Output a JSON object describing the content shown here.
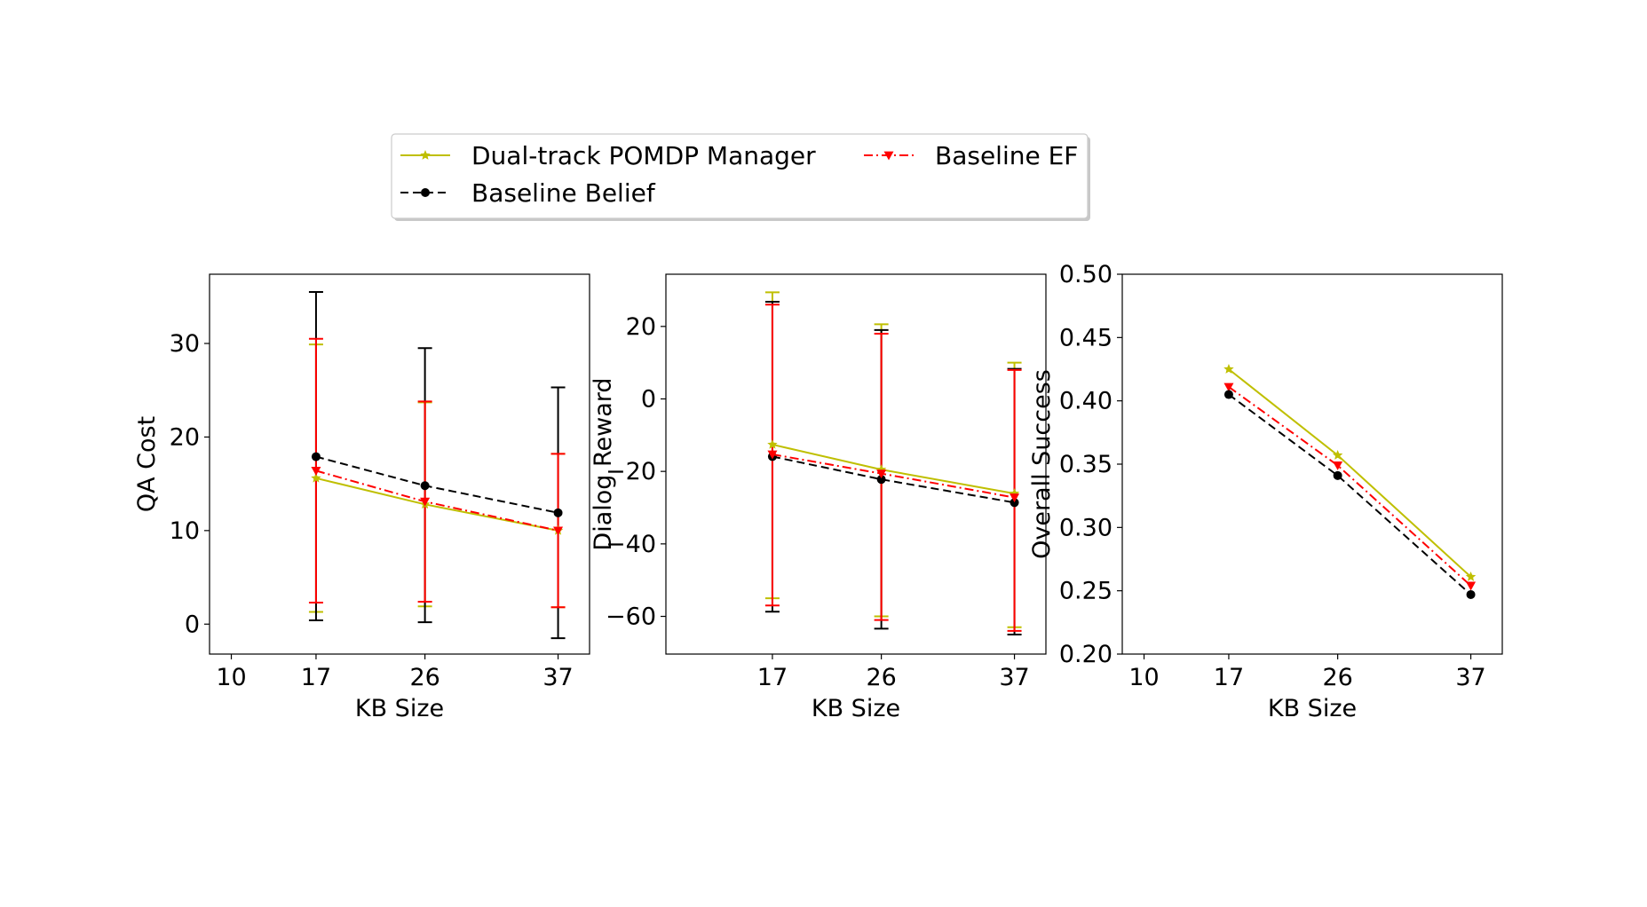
{
  "legend": {
    "placement": "top-center, two columns",
    "entries": [
      {
        "series_key": "dual",
        "label": "Dual-track POMDP Manager"
      },
      {
        "series_key": "ef",
        "label": "Baseline EF"
      },
      {
        "series_key": "belief",
        "label": "Baseline Belief"
      }
    ]
  },
  "styles": {
    "dual": {
      "color": "#bfbf00",
      "dash": "solid",
      "marker": "star"
    },
    "ef": {
      "color": "#ff0000",
      "dash": "dashdot",
      "marker": "triangle-down"
    },
    "belief": {
      "color": "#000000",
      "dash": "dashed",
      "marker": "circle"
    }
  },
  "chart_data": [
    {
      "type": "line",
      "xlabel": "KB Size",
      "ylabel": "QA Cost",
      "xticks": [
        10,
        17,
        26,
        37
      ],
      "xlim": [
        8.2,
        39.6
      ],
      "ylim": [
        -3.2,
        37.4
      ],
      "yticks": [
        0,
        10,
        20,
        30
      ],
      "grid": false,
      "x": [
        17,
        26,
        37
      ],
      "series": [
        {
          "key": "dual",
          "name": "Dual-track POMDP Manager",
          "values": [
            15.6,
            12.8,
            10.0
          ],
          "err_lo": [
            1.3,
            1.9,
            1.8
          ],
          "err_hi": [
            29.9,
            23.7,
            18.2
          ]
        },
        {
          "key": "belief",
          "name": "Baseline Belief",
          "values": [
            17.9,
            14.8,
            11.9
          ],
          "err_lo": [
            0.4,
            0.2,
            -1.5
          ],
          "err_hi": [
            35.5,
            29.5,
            25.3
          ]
        },
        {
          "key": "ef",
          "name": "Baseline EF",
          "values": [
            16.4,
            13.1,
            10.0
          ],
          "err_lo": [
            2.3,
            2.4,
            1.8
          ],
          "err_hi": [
            30.5,
            23.8,
            18.2
          ]
        }
      ]
    },
    {
      "type": "line",
      "xlabel": "KB Size",
      "ylabel": "Dialog Reward",
      "xticks": [
        17,
        26,
        37
      ],
      "xlim": [
        8.2,
        39.6
      ],
      "ylim": [
        -70.4,
        34.4
      ],
      "yticks": [
        -60,
        -40,
        -20,
        0,
        20
      ],
      "grid": false,
      "x": [
        17,
        26,
        37
      ],
      "series": [
        {
          "key": "dual",
          "name": "Dual-track POMDP Manager",
          "values": [
            -12.6,
            -19.5,
            -26.1
          ],
          "err_lo": [
            -55.0,
            -60.0,
            -63.0
          ],
          "err_hi": [
            29.4,
            20.6,
            10.0
          ]
        },
        {
          "key": "belief",
          "name": "Baseline Belief",
          "values": [
            -15.9,
            -22.2,
            -28.6
          ],
          "err_lo": [
            -58.7,
            -63.4,
            -65.0
          ],
          "err_hi": [
            26.8,
            19.0,
            8.3
          ]
        },
        {
          "key": "ef",
          "name": "Baseline EF",
          "values": [
            -15.3,
            -20.6,
            -27.2
          ],
          "err_lo": [
            -57.0,
            -61.0,
            -64.0
          ],
          "err_hi": [
            26.0,
            18.0,
            8.0
          ]
        }
      ]
    },
    {
      "type": "line",
      "xlabel": "KB Size",
      "ylabel": "Overall Success",
      "xticks": [
        10,
        17,
        26,
        37
      ],
      "xlim": [
        8.2,
        39.6
      ],
      "ylim": [
        0.2,
        0.5
      ],
      "yticks": [
        0.2,
        0.25,
        0.3,
        0.35,
        0.4,
        0.45,
        0.5
      ],
      "ytick_labels": [
        "0.20",
        "0.25",
        "0.30",
        "0.35",
        "0.40",
        "0.45",
        "0.50"
      ],
      "grid": false,
      "x": [
        17,
        26,
        37
      ],
      "series": [
        {
          "key": "dual",
          "name": "Dual-track POMDP Manager",
          "values": [
            0.425,
            0.357,
            0.261
          ]
        },
        {
          "key": "ef",
          "name": "Baseline EF",
          "values": [
            0.411,
            0.349,
            0.254
          ]
        },
        {
          "key": "belief",
          "name": "Baseline Belief",
          "values": [
            0.405,
            0.341,
            0.247
          ]
        }
      ]
    }
  ]
}
